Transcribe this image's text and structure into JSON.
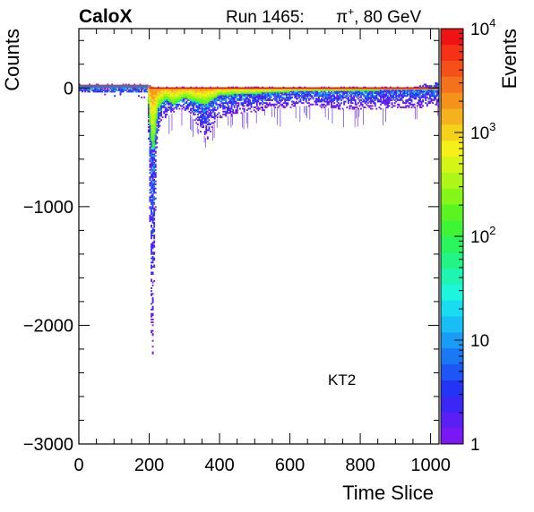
{
  "chart_data": {
    "type": "heatmap",
    "experiment_label": "CaloX",
    "run_label": "Run 1465:",
    "beam_particle": "π",
    "beam_charge": "+",
    "beam_energy": ", 80 GeV",
    "annotation": "KT2",
    "xlabel": "Time Slice",
    "ylabel": "Counts",
    "zlabel": "Events",
    "xlim": [
      0,
      1024
    ],
    "ylim": [
      -3000,
      500
    ],
    "zlim": [
      1,
      10000
    ],
    "z_log_scale": true,
    "x_ticks": [
      0,
      200,
      400,
      600,
      800,
      1000
    ],
    "x_tick_labels": [
      "0",
      "200",
      "400",
      "600",
      "800",
      "1000"
    ],
    "y_ticks": [
      -3000,
      -2000,
      -1000,
      0
    ],
    "y_tick_labels": [
      "−3000",
      "−2000",
      "−1000",
      "0"
    ],
    "z_ticks": [
      {
        "value": 1,
        "base": "1",
        "exp": ""
      },
      {
        "value": 10,
        "base": "10",
        "exp": ""
      },
      {
        "value": 100,
        "base": "10",
        "exp": "2"
      },
      {
        "value": 1000,
        "base": "10",
        "exp": "3"
      },
      {
        "value": 10000,
        "base": "10",
        "exp": "4"
      }
    ],
    "palette": [
      "#7a18f5",
      "#5a1ff5",
      "#3a26f5",
      "#2434f5",
      "#1d56f5",
      "#1a78f5",
      "#199cf5",
      "#18bef5",
      "#1adcf0",
      "#1df5dc",
      "#1ef5b0",
      "#22f584",
      "#2af55c",
      "#3df535",
      "#5af520",
      "#86f51a",
      "#aef518",
      "#d4f516",
      "#f5f015",
      "#f5d21a",
      "#f5b21c",
      "#f5921c",
      "#f5721c",
      "#f5501a",
      "#f53218",
      "#ee1414"
    ],
    "baseline": {
      "description_free": true,
      "pre_pulse_level": 20,
      "x_range": [
        0,
        1024
      ]
    },
    "pulse_envelope": [
      {
        "x": 0,
        "min": -60,
        "max": 25
      },
      {
        "x": 50,
        "min": -60,
        "max": 25
      },
      {
        "x": 100,
        "min": -90,
        "max": 25
      },
      {
        "x": 150,
        "min": -80,
        "max": 25
      },
      {
        "x": 195,
        "min": -80,
        "max": 25
      },
      {
        "x": 200,
        "min": -700,
        "max": 15
      },
      {
        "x": 205,
        "min": -2000,
        "max": 10
      },
      {
        "x": 210,
        "min": -2300,
        "max": 5
      },
      {
        "x": 215,
        "min": -1500,
        "max": 5
      },
      {
        "x": 222,
        "min": -500,
        "max": 5
      },
      {
        "x": 235,
        "min": -260,
        "max": 5
      },
      {
        "x": 260,
        "min": -230,
        "max": 5
      },
      {
        "x": 290,
        "min": -160,
        "max": 5
      },
      {
        "x": 320,
        "min": -230,
        "max": 5
      },
      {
        "x": 345,
        "min": -360,
        "max": 5
      },
      {
        "x": 365,
        "min": -430,
        "max": 5
      },
      {
        "x": 390,
        "min": -260,
        "max": 5
      },
      {
        "x": 450,
        "min": -220,
        "max": 5
      },
      {
        "x": 550,
        "min": -170,
        "max": 5
      },
      {
        "x": 650,
        "min": -150,
        "max": 5
      },
      {
        "x": 750,
        "min": -180,
        "max": 5
      },
      {
        "x": 850,
        "min": -170,
        "max": 5
      },
      {
        "x": 950,
        "min": -160,
        "max": 5
      },
      {
        "x": 1024,
        "min": -150,
        "max": 60
      }
    ],
    "core_band": [
      {
        "x": 195,
        "lo": 0,
        "hi": 20
      },
      {
        "x": 205,
        "lo": -420,
        "hi": 10
      },
      {
        "x": 212,
        "lo": -560,
        "hi": 5
      },
      {
        "x": 225,
        "lo": -170,
        "hi": 5
      },
      {
        "x": 245,
        "lo": -90,
        "hi": 5
      },
      {
        "x": 270,
        "lo": -140,
        "hi": 5
      },
      {
        "x": 300,
        "lo": -80,
        "hi": 5
      },
      {
        "x": 330,
        "lo": -110,
        "hi": 5
      },
      {
        "x": 360,
        "lo": -140,
        "hi": 5
      },
      {
        "x": 400,
        "lo": -60,
        "hi": 5
      },
      {
        "x": 600,
        "lo": -30,
        "hi": 5
      },
      {
        "x": 1024,
        "lo": -10,
        "hi": 5
      }
    ]
  }
}
